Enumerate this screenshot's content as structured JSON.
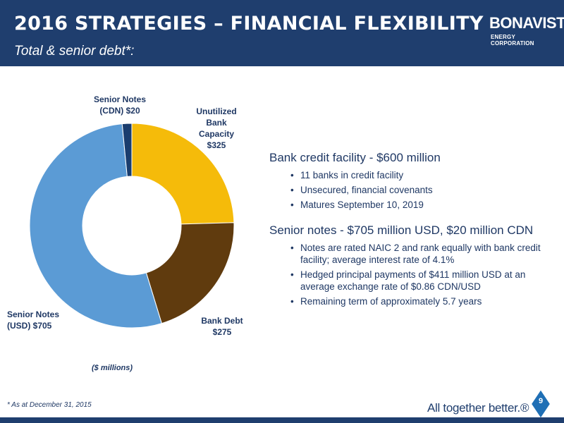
{
  "header": {
    "title": "2016 STRATEGIES – FINANCIAL FLEXIBILITY",
    "subtitle": "Total & senior debt*:",
    "logo_name": "BONAVISTA",
    "logo_sub": "ENERGY CORPORATION"
  },
  "chart_data": {
    "type": "pie",
    "donut": true,
    "units_label": "($ millions)",
    "slices": [
      {
        "label_line1": "Unutilized Bank",
        "label_line2": "Capacity",
        "label": "Unutilized Bank Capacity",
        "value": 325,
        "value_label": "$325",
        "color": "#f5bb0a"
      },
      {
        "label_line1": "Bank Debt",
        "label_line2": "",
        "label": "Bank Debt",
        "value": 275,
        "value_label": "$275",
        "color": "#603b0e"
      },
      {
        "label_line1": "Senior Notes",
        "label_line2": "(USD)",
        "label": "Senior Notes (USD)",
        "value": 705,
        "value_label": "$705",
        "color": "#5b9bd5"
      },
      {
        "label_line1": "Senior Notes",
        "label_line2": "(CDN)",
        "label": "Senior Notes (CDN)",
        "value": 20,
        "value_label": "$20",
        "color": "#1a3d6e"
      }
    ]
  },
  "labels": {
    "unutilized": {
      "l1": "Unutilized",
      "l2": "Bank",
      "l3": "Capacity",
      "l4": "$325"
    },
    "bank_debt": {
      "l1": "Bank Debt",
      "l2": "$275"
    },
    "senior_usd": {
      "l1": "Senior Notes",
      "l2": "(USD) $705"
    },
    "senior_cdn": {
      "l1": "Senior Notes",
      "l2": "(CDN) $20"
    }
  },
  "credit": {
    "heading": "Bank credit facility - $600 million",
    "bullets": [
      "11 banks in credit facility",
      "Unsecured, financial  covenants",
      "Matures September 10, 2019"
    ]
  },
  "senior": {
    "heading": "Senior notes - $705 million USD, $20 million CDN",
    "bullets": [
      "Notes are rated NAIC 2 and rank equally with bank credit facility; average interest rate of 4.1%",
      "Hedged principal payments of $411 million USD at an average exchange rate of $0.86 CDN/USD",
      "Remaining term of approximately 5.7 years"
    ]
  },
  "footer": {
    "footnote": "* As at December 31, 2015",
    "tagline": "All together better.®",
    "page_number": "9"
  }
}
